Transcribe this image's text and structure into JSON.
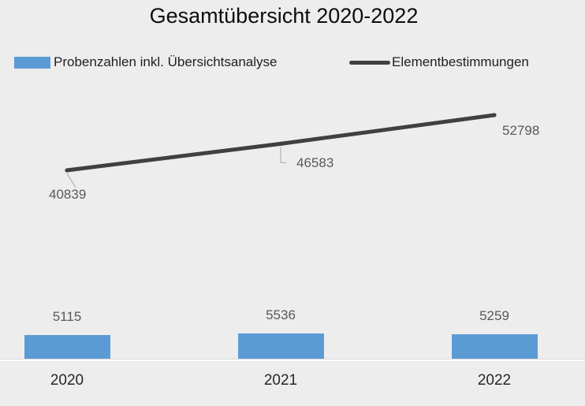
{
  "title": "Gesamtübersicht 2020-2022",
  "colors": {
    "background": "#EDEDED",
    "bar": "#5B9BD5",
    "line": "#404040",
    "data_label": "#595959",
    "leader_line": "#A6A6A6",
    "axis_line": "#D9D9D9",
    "title_text": "#0D0D0D",
    "category_text": "#262626"
  },
  "legend": {
    "position": "top",
    "items": [
      {
        "label": "Probenzahlen inkl. Übersichtsanalyse",
        "swatch": "bar-swatch-icon",
        "color": "#5B9BD5"
      },
      {
        "label": "Elementbestimmungen",
        "swatch": "line-swatch-icon",
        "color": "#404040"
      }
    ]
  },
  "chart_data": {
    "type": "bar",
    "subtype": "combo bar + line, dual series, data labels shown, no value axis",
    "title": "Gesamtübersicht 2020-2022",
    "categories": [
      "2020",
      "2021",
      "2022"
    ],
    "series": [
      {
        "name": "Probenzahlen inkl. Übersichtsanalyse",
        "type": "bar",
        "color": "#5B9BD5",
        "values": [
          5115,
          5536,
          5259
        ]
      },
      {
        "name": "Elementbestimmungen",
        "type": "line",
        "color": "#404040",
        "values": [
          40839,
          46583,
          52798
        ]
      }
    ],
    "xlabel": "",
    "ylabel": "",
    "value_axis_visible": false,
    "gridlines": false,
    "data_labels": true,
    "legend_position": "top",
    "background": "#EDEDED"
  }
}
